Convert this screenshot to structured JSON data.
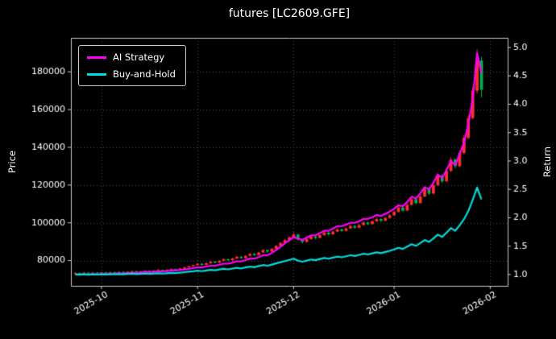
{
  "title": "futures [LC2609.GFE]",
  "chart_data": {
    "type": "candlestick+line",
    "title": "futures [LC2609.GFE]",
    "grid": "dotted",
    "legend_position": "upper-left",
    "colors": {
      "bg": "#000000",
      "text": "#ffffff",
      "grid": "#4d4d4d",
      "spine": "#c9c9c9",
      "up_candle": "#ff2e2e",
      "down_candle": "#00b050",
      "ai_strategy": "#ff00ff",
      "buy_and_hold": "#00dddd"
    },
    "x_axis": {
      "tick_labels": [
        "2025-10",
        "2025-11",
        "2025-12",
        "2026-01",
        "2026-02"
      ],
      "tick_positions": [
        6,
        28,
        50,
        73,
        95
      ],
      "range": [
        -1,
        99
      ],
      "rotation_deg": 30
    },
    "price_axis": {
      "label": "Price",
      "ticks": [
        80000,
        100000,
        120000,
        140000,
        160000,
        180000
      ],
      "range": [
        66600,
        198000
      ]
    },
    "return_axis": {
      "label": "Return",
      "ticks": [
        1.0,
        1.5,
        2.0,
        2.5,
        3.0,
        3.5,
        4.0,
        4.5,
        5.0
      ],
      "range": [
        0.8,
        5.17
      ]
    },
    "legend": [
      {
        "label": "AI Strategy",
        "color": "#ff00ff"
      },
      {
        "label": "Buy-and-Hold",
        "color": "#00dddd"
      }
    ],
    "ohlc": [
      [
        73000,
        73800,
        72600,
        73400
      ],
      [
        73400,
        73700,
        72800,
        73100
      ],
      [
        73100,
        73900,
        72900,
        73600
      ],
      [
        73600,
        73800,
        73000,
        73200
      ],
      [
        73200,
        73900,
        73000,
        73600
      ],
      [
        73600,
        73900,
        73000,
        73300
      ],
      [
        73300,
        74000,
        73100,
        73700
      ],
      [
        73700,
        74000,
        73100,
        73400
      ],
      [
        73400,
        74100,
        73200,
        73800
      ],
      [
        73800,
        74100,
        73300,
        73600
      ],
      [
        73600,
        74300,
        73400,
        74000
      ],
      [
        74000,
        74300,
        73400,
        73700
      ],
      [
        73700,
        74400,
        73500,
        74100
      ],
      [
        74100,
        74700,
        73900,
        74400
      ],
      [
        74400,
        74600,
        73700,
        74000
      ],
      [
        74000,
        74600,
        73800,
        74300
      ],
      [
        74300,
        74900,
        74100,
        74600
      ],
      [
        74600,
        74800,
        73900,
        74200
      ],
      [
        74200,
        75000,
        74000,
        74700
      ],
      [
        74700,
        75300,
        74500,
        75000
      ],
      [
        75000,
        75200,
        74300,
        74600
      ],
      [
        74600,
        75400,
        74400,
        75100
      ],
      [
        75100,
        75800,
        74900,
        75500
      ],
      [
        75500,
        75700,
        74900,
        75200
      ],
      [
        75200,
        76100,
        75000,
        75800
      ],
      [
        75800,
        76700,
        75600,
        76400
      ],
      [
        76400,
        77300,
        76200,
        77000
      ],
      [
        77000,
        77900,
        76700,
        77600
      ],
      [
        77600,
        78700,
        77300,
        78300
      ],
      [
        78300,
        78600,
        77300,
        77700
      ],
      [
        77700,
        79000,
        77500,
        78600
      ],
      [
        78600,
        79800,
        78300,
        79400
      ],
      [
        79400,
        79700,
        78500,
        78900
      ],
      [
        78900,
        80300,
        78700,
        79900
      ],
      [
        79900,
        81100,
        79600,
        80700
      ],
      [
        80700,
        81000,
        79700,
        80100
      ],
      [
        80100,
        81500,
        79900,
        81100
      ],
      [
        81100,
        82400,
        80800,
        82000
      ],
      [
        82000,
        82300,
        80900,
        81300
      ],
      [
        81300,
        82900,
        81100,
        82500
      ],
      [
        82500,
        84000,
        82200,
        83600
      ],
      [
        83600,
        83900,
        82400,
        82900
      ],
      [
        82900,
        84700,
        82700,
        84300
      ],
      [
        84300,
        86100,
        84000,
        85600
      ],
      [
        85600,
        85900,
        84200,
        84800
      ],
      [
        84800,
        86700,
        84500,
        86200
      ],
      [
        86200,
        88300,
        85900,
        87800
      ],
      [
        87800,
        89900,
        87400,
        89300
      ],
      [
        89300,
        91400,
        89000,
        90800
      ],
      [
        90800,
        92900,
        90400,
        92300
      ],
      [
        92300,
        94800,
        91900,
        93800
      ],
      [
        93800,
        94200,
        90600,
        91200
      ],
      [
        91200,
        91600,
        89000,
        89900
      ],
      [
        89900,
        92000,
        89500,
        91400
      ],
      [
        91400,
        93400,
        91000,
        92800
      ],
      [
        92800,
        93200,
        91400,
        92000
      ],
      [
        92000,
        94100,
        91700,
        93500
      ],
      [
        93500,
        95400,
        93100,
        94800
      ],
      [
        94800,
        95200,
        93300,
        93900
      ],
      [
        93900,
        95900,
        93600,
        95300
      ],
      [
        95300,
        97100,
        95000,
        96500
      ],
      [
        96500,
        96900,
        95100,
        95700
      ],
      [
        95700,
        97600,
        95400,
        97000
      ],
      [
        97000,
        98900,
        96700,
        98300
      ],
      [
        98300,
        98700,
        96800,
        97400
      ],
      [
        97400,
        99400,
        97100,
        98800
      ],
      [
        98800,
        100800,
        98500,
        100200
      ],
      [
        100200,
        100600,
        98700,
        99300
      ],
      [
        99300,
        101400,
        99000,
        100800
      ],
      [
        100800,
        102600,
        100500,
        102000
      ],
      [
        102000,
        102400,
        100500,
        101100
      ],
      [
        101100,
        103200,
        100800,
        102600
      ],
      [
        102600,
        104600,
        102200,
        104000
      ],
      [
        104000,
        106500,
        103600,
        105800
      ],
      [
        105800,
        108800,
        105400,
        108000
      ],
      [
        108000,
        108500,
        105800,
        106500
      ],
      [
        106500,
        110300,
        106100,
        109500
      ],
      [
        109500,
        113300,
        109100,
        112500
      ],
      [
        112500,
        113100,
        109800,
        110500
      ],
      [
        110500,
        114900,
        110100,
        114000
      ],
      [
        114000,
        119000,
        113500,
        118000
      ],
      [
        118000,
        118600,
        114700,
        115500
      ],
      [
        115500,
        121000,
        115000,
        120000
      ],
      [
        120000,
        126200,
        119500,
        125000
      ],
      [
        125000,
        125700,
        121000,
        122000
      ],
      [
        122000,
        128800,
        121500,
        127500
      ],
      [
        127500,
        134800,
        127000,
        133500
      ],
      [
        133500,
        134300,
        128800,
        130000
      ],
      [
        130000,
        138400,
        129400,
        137000
      ],
      [
        137000,
        146500,
        136200,
        145000
      ],
      [
        145000,
        157000,
        144200,
        155500
      ],
      [
        155500,
        172000,
        154800,
        170000
      ],
      [
        170000,
        192000,
        168500,
        186000
      ],
      [
        186000,
        188000,
        166500,
        170500
      ]
    ],
    "series": [
      {
        "name": "AI Strategy",
        "axis": "return",
        "color": "#ff00ff",
        "values": [
          1.0,
          1.0,
          1.002,
          1.002,
          1.005,
          1.005,
          1.008,
          1.008,
          1.012,
          1.015,
          1.02,
          1.02,
          1.025,
          1.03,
          1.03,
          1.036,
          1.042,
          1.042,
          1.048,
          1.055,
          1.055,
          1.062,
          1.07,
          1.07,
          1.08,
          1.09,
          1.1,
          1.112,
          1.125,
          1.125,
          1.14,
          1.155,
          1.155,
          1.172,
          1.19,
          1.19,
          1.21,
          1.232,
          1.232,
          1.255,
          1.28,
          1.28,
          1.308,
          1.338,
          1.338,
          1.38,
          1.43,
          1.49,
          1.55,
          1.6,
          1.66,
          1.63,
          1.61,
          1.65,
          1.69,
          1.69,
          1.73,
          1.77,
          1.77,
          1.81,
          1.85,
          1.85,
          1.88,
          1.91,
          1.91,
          1.94,
          1.98,
          1.98,
          2.01,
          2.05,
          2.03,
          2.07,
          2.11,
          2.16,
          2.22,
          2.2,
          2.28,
          2.37,
          2.34,
          2.43,
          2.54,
          2.5,
          2.62,
          2.76,
          2.7,
          2.84,
          3.0,
          2.93,
          3.12,
          3.32,
          3.65,
          4.1,
          4.9,
          4.55
        ]
      },
      {
        "name": "Buy-and-Hold",
        "axis": "return",
        "color": "#00dddd",
        "values": [
          1.0,
          0.996,
          1.003,
          0.997,
          1.003,
          0.999,
          1.004,
          1.0,
          1.005,
          1.003,
          1.008,
          1.004,
          1.01,
          1.014,
          1.008,
          1.012,
          1.016,
          1.011,
          1.018,
          1.022,
          1.016,
          1.023,
          1.029,
          1.025,
          1.033,
          1.041,
          1.049,
          1.057,
          1.067,
          1.059,
          1.071,
          1.082,
          1.075,
          1.089,
          1.099,
          1.091,
          1.105,
          1.117,
          1.108,
          1.124,
          1.139,
          1.129,
          1.149,
          1.166,
          1.155,
          1.174,
          1.196,
          1.217,
          1.237,
          1.257,
          1.278,
          1.243,
          1.225,
          1.245,
          1.264,
          1.253,
          1.274,
          1.292,
          1.279,
          1.298,
          1.315,
          1.304,
          1.322,
          1.339,
          1.327,
          1.346,
          1.365,
          1.353,
          1.373,
          1.39,
          1.377,
          1.398,
          1.417,
          1.441,
          1.471,
          1.451,
          1.492,
          1.533,
          1.505,
          1.553,
          1.608,
          1.574,
          1.635,
          1.703,
          1.662,
          1.737,
          1.819,
          1.771,
          1.866,
          1.975,
          2.119,
          2.316,
          2.534,
          2.323
        ]
      }
    ]
  }
}
